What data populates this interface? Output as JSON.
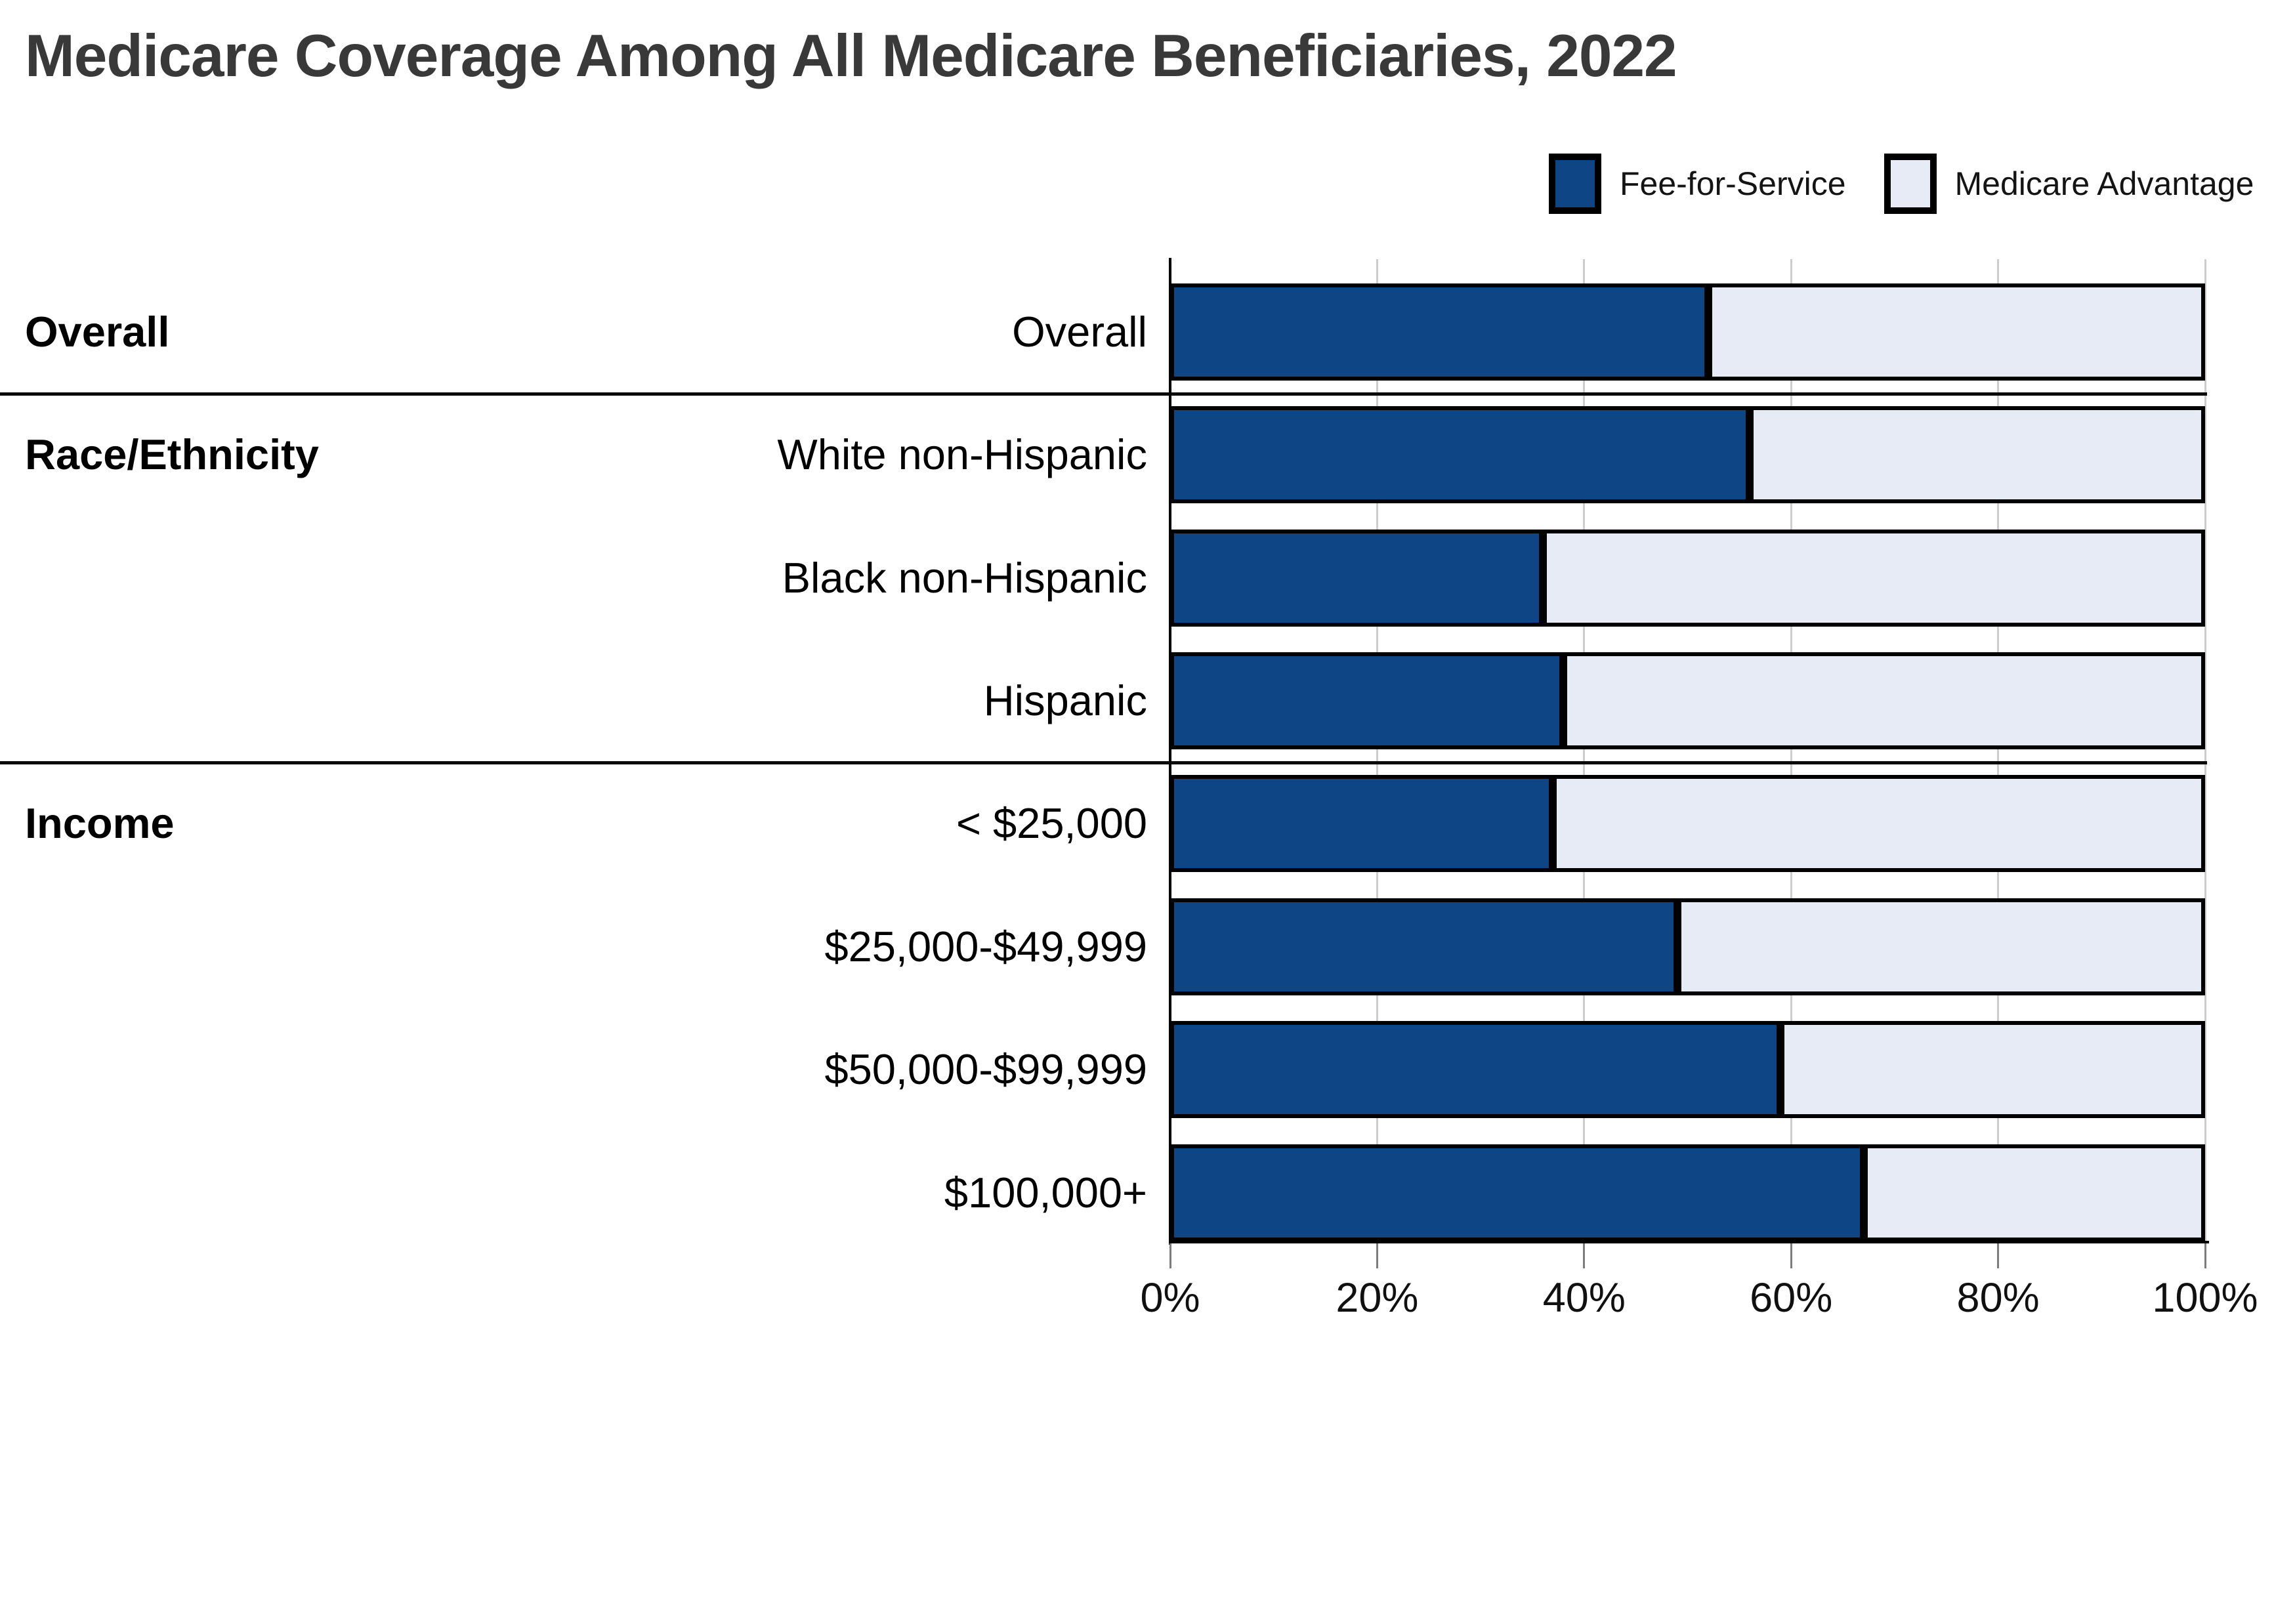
{
  "page": {
    "title": "Medicare Coverage Among All Medicare Beneficiaries, 2022"
  },
  "chart_data": {
    "type": "bar",
    "variant": "horizontal-stacked-100pct",
    "title": "Medicare Coverage Among All Medicare Beneficiaries, 2022",
    "legend": {
      "position": "top-right",
      "items": [
        {
          "name": "Fee-for-Service",
          "color": "#0d4585"
        },
        {
          "name": "Medicare Advantage",
          "color": "#e7ebf5"
        }
      ]
    },
    "x_axis": {
      "range": [
        0,
        100
      ],
      "tick_labels": [
        "0%",
        "20%",
        "40%",
        "60%",
        "80%",
        "100%"
      ],
      "grid": true
    },
    "sections": [
      "Overall",
      "Race/Ethnicity",
      "Income"
    ],
    "categories": [
      "Overall",
      "White non-Hispanic",
      "Black non-Hispanic",
      "Hispanic",
      "< $25,000",
      "$25,000-$49,999",
      "$50,000-$99,999",
      "$100,000+"
    ],
    "rows": [
      {
        "label": "Overall",
        "section": "Overall",
        "fee_for_service": 52,
        "medicare_advantage": 48
      },
      {
        "label": "White non-Hispanic",
        "section": "Race/Ethnicity",
        "fee_for_service": 56,
        "medicare_advantage": 44
      },
      {
        "label": "Black non-Hispanic",
        "fee_for_service": 36,
        "medicare_advantage": 64
      },
      {
        "label": "Hispanic",
        "fee_for_service": 38,
        "medicare_advantage": 62
      },
      {
        "label": "< $25,000",
        "section": "Income",
        "fee_for_service": 37,
        "medicare_advantage": 63
      },
      {
        "label": "$25,000-$49,999",
        "fee_for_service": 49,
        "medicare_advantage": 51
      },
      {
        "label": "$50,000-$99,999",
        "fee_for_service": 59,
        "medicare_advantage": 41
      },
      {
        "label": "$100,000+",
        "fee_for_service": 67,
        "medicare_advantage": 33
      }
    ],
    "series": [
      {
        "name": "Fee-for-Service",
        "values": [
          52,
          56,
          36,
          38,
          37,
          49,
          59,
          67
        ]
      },
      {
        "name": "Medicare Advantage",
        "values": [
          48,
          44,
          64,
          62,
          63,
          51,
          41,
          33
        ]
      }
    ],
    "colors": {
      "fee_for_service": "#0d4585",
      "medicare_advantage": "#e7ebf5",
      "bar_border": "#000000",
      "gridline": "#cdcdcd",
      "axis": "#000000",
      "title_text": "#393939",
      "label_text": "#000000"
    }
  }
}
